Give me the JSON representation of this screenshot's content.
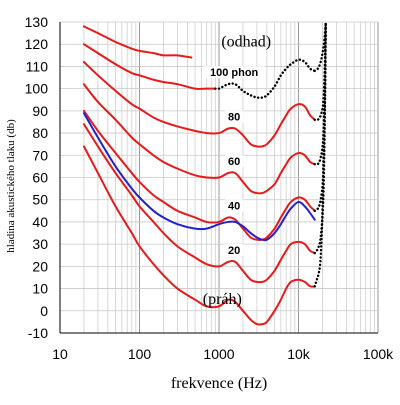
{
  "chart_data": {
    "type": "line",
    "xlabel": "frekvence (Hz)",
    "ylabel": "hladina akustického tlaku (db)",
    "x_scale": "log",
    "xlim": [
      10,
      100000
    ],
    "ylim": [
      -10,
      130
    ],
    "x_ticks": [
      {
        "value": 10,
        "label": "10"
      },
      {
        "value": 100,
        "label": "100"
      },
      {
        "value": 1000,
        "label": "1000"
      },
      {
        "value": 10000,
        "label": "10k"
      },
      {
        "value": 100000,
        "label": "100k"
      }
    ],
    "y_ticks": [
      -10,
      0,
      10,
      20,
      30,
      40,
      50,
      60,
      70,
      80,
      90,
      100,
      110,
      120,
      130
    ],
    "y_tick_labels": [
      "-10",
      "0",
      "10",
      "20",
      "30",
      "40",
      "50",
      "60",
      "70",
      "80",
      "90",
      "100",
      "110",
      "120",
      "130"
    ],
    "grid": true,
    "annotations": [
      {
        "text": "(odhad)",
        "x": 2200,
        "y": 119
      },
      {
        "text": "(práh)",
        "x": 1100,
        "y": 3
      }
    ],
    "series": [
      {
        "name": "(práh)",
        "label": "",
        "color": "#e8191a",
        "style": "solid",
        "x": [
          20,
          30,
          50,
          80,
          100,
          150,
          200,
          300,
          500,
          700,
          1000,
          1300,
          1600,
          2000,
          2500,
          3000,
          3500,
          4000,
          5000,
          6000,
          7000,
          8000,
          10000,
          12000,
          14000,
          16000
        ],
        "y": [
          74,
          62,
          47,
          35,
          29,
          21,
          16,
          10,
          5,
          2,
          2,
          5,
          4,
          0,
          -4,
          -6,
          -6,
          -5,
          0,
          5,
          10,
          13,
          14,
          13,
          11,
          11
        ]
      },
      {
        "name": "20",
        "label": "20",
        "color": "#e8191a",
        "style": "solid",
        "x": [
          20,
          30,
          50,
          80,
          100,
          150,
          200,
          300,
          500,
          700,
          1000,
          1300,
          1600,
          2000,
          2500,
          3000,
          3500,
          4000,
          5000,
          6000,
          7000,
          8000,
          10000,
          12000,
          14000,
          16000
        ],
        "y": [
          84,
          74,
          62,
          52,
          47,
          40,
          35,
          29,
          24,
          21,
          20,
          22,
          22,
          18,
          14,
          13,
          13,
          14,
          18,
          23,
          27,
          30,
          31,
          30,
          27,
          26
        ]
      },
      {
        "name": "40",
        "label": "40",
        "color": "#e8191a",
        "style": "solid",
        "x": [
          20,
          30,
          50,
          80,
          100,
          150,
          200,
          300,
          500,
          700,
          1000,
          1300,
          1600,
          2000,
          2500,
          3000,
          3500,
          4000,
          5000,
          6000,
          7000,
          8000,
          10000,
          12000,
          14000,
          16000
        ],
        "y": [
          90,
          81,
          71,
          62,
          58,
          52,
          49,
          45,
          42,
          40,
          40,
          42,
          41,
          37,
          33,
          32,
          32,
          33,
          37,
          42,
          46,
          49,
          51,
          50,
          47,
          45
        ]
      },
      {
        "name": "60",
        "label": "60",
        "color": "#e8191a",
        "style": "solid",
        "x": [
          20,
          30,
          50,
          80,
          100,
          150,
          200,
          300,
          500,
          700,
          1000,
          1300,
          1600,
          2000,
          2500,
          3000,
          3500,
          4000,
          5000,
          6000,
          7000,
          8000,
          10000,
          12000,
          14000,
          16000
        ],
        "y": [
          102,
          94,
          86,
          78,
          75,
          70,
          67,
          64,
          61,
          60,
          60,
          62,
          62,
          58,
          54,
          53,
          53,
          54,
          57,
          62,
          66,
          69,
          71,
          70,
          67,
          66
        ]
      },
      {
        "name": "80",
        "label": "80",
        "color": "#e8191a",
        "style": "solid",
        "x": [
          20,
          30,
          50,
          80,
          100,
          150,
          200,
          300,
          500,
          700,
          1000,
          1300,
          1600,
          2000,
          2500,
          3000,
          3500,
          4000,
          5000,
          6000,
          7000,
          8000,
          10000,
          12000,
          14000,
          16000
        ],
        "y": [
          112,
          106,
          99,
          93,
          91,
          87,
          85,
          83,
          81,
          80,
          80,
          82,
          82,
          79,
          75,
          74,
          74,
          75,
          79,
          84,
          88,
          91,
          93,
          92,
          88,
          86
        ]
      },
      {
        "name": "100 phon",
        "label": "",
        "color": "#e8191a",
        "style": "solid",
        "x": [
          20,
          30,
          50,
          80,
          100,
          150,
          200,
          300,
          500,
          700,
          900
        ],
        "y": [
          120,
          116,
          111,
          107,
          106,
          104,
          103,
          102,
          100,
          100,
          100
        ]
      },
      {
        "name": "100 phon",
        "label": "100 phon",
        "color": "#000000",
        "style": "dotted",
        "x": [
          900,
          1000,
          1300,
          1600,
          2000,
          2500,
          3000,
          3500,
          4000,
          5000,
          6000,
          7000,
          8000,
          10000,
          12000,
          14000,
          16000
        ],
        "y": [
          100,
          100,
          102,
          102,
          99,
          97,
          96,
          96,
          97,
          101,
          106,
          109,
          111,
          113,
          112,
          109,
          108
        ]
      },
      {
        "name": "120",
        "label": "",
        "color": "#e8191a",
        "style": "solid",
        "x": [
          20,
          30,
          50,
          80,
          100,
          150,
          200,
          300,
          450
        ],
        "y": [
          128,
          125,
          121,
          118,
          117,
          116,
          115,
          115,
          114
        ]
      },
      {
        "name": "práh (odhad)",
        "label": "",
        "color": "#000000",
        "style": "dotted",
        "x": [
          16000,
          17000,
          18000,
          19000,
          20000,
          21000,
          22000
        ],
        "y": [
          11,
          14,
          17,
          24,
          45,
          85,
          130
        ]
      },
      {
        "name": "20 (odhad)",
        "label": "",
        "color": "#000000",
        "style": "dotted",
        "x": [
          16000,
          17500,
          19000,
          20500,
          21500,
          22000
        ],
        "y": [
          26,
          28,
          33,
          50,
          90,
          130
        ]
      },
      {
        "name": "40 (odhad)",
        "label": "",
        "color": "#000000",
        "style": "dotted",
        "x": [
          16000,
          17500,
          19000,
          20500,
          21500,
          22000
        ],
        "y": [
          45,
          46,
          50,
          62,
          95,
          130
        ]
      },
      {
        "name": "60 (odhad)",
        "label": "",
        "color": "#000000",
        "style": "dotted",
        "x": [
          16000,
          17500,
          19000,
          20500,
          21500,
          22000
        ],
        "y": [
          66,
          66,
          69,
          78,
          105,
          130
        ]
      },
      {
        "name": "80 (odhad)",
        "label": "",
        "color": "#000000",
        "style": "dotted",
        "x": [
          16000,
          17500,
          19000,
          20500,
          21500,
          22000
        ],
        "y": [
          86,
          86,
          88,
          94,
          112,
          130
        ]
      },
      {
        "name": "100 (odhad)",
        "label": "",
        "color": "#000000",
        "style": "dotted",
        "x": [
          16000,
          17500,
          19000,
          20500,
          21500,
          22000
        ],
        "y": [
          108,
          109,
          112,
          118,
          125,
          130
        ]
      },
      {
        "name": "40 (blue)",
        "label": "",
        "color": "#2222cc",
        "style": "solid",
        "x": [
          20,
          30,
          50,
          80,
          100,
          150,
          200,
          300,
          500,
          700,
          1000,
          1300,
          1600,
          2000,
          2500,
          3000,
          3500,
          4000,
          5000,
          6000,
          7000,
          8000,
          10000,
          12000,
          14000,
          16000
        ],
        "y": [
          89,
          78,
          65,
          55,
          51,
          45,
          42,
          39,
          37,
          37,
          39,
          40,
          40,
          38,
          35,
          33,
          32,
          32,
          35,
          39,
          43,
          46,
          49,
          47,
          44,
          41
        ]
      }
    ]
  }
}
